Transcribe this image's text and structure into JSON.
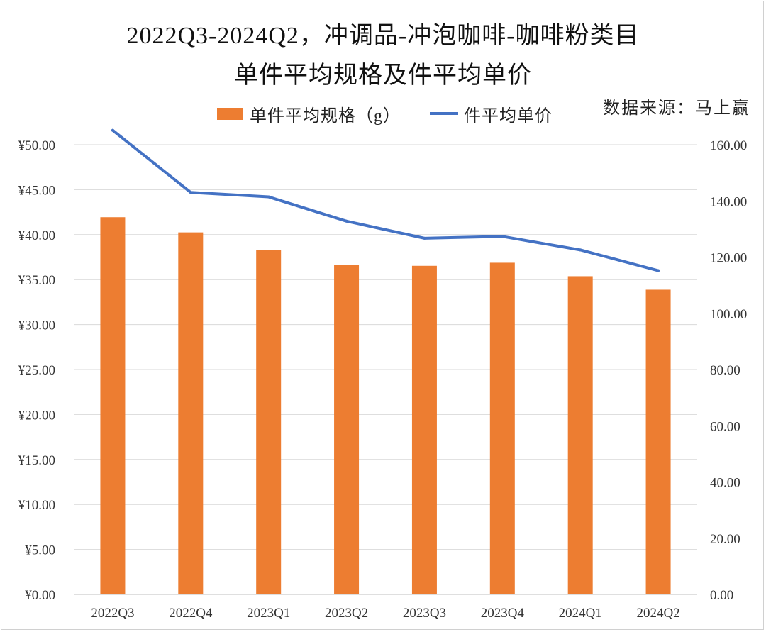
{
  "title_line1": "2022Q3-2024Q2，冲调品-冲泡咖啡-咖啡粉类目",
  "title_line2": "单件平均规格及件平均单价",
  "source": "数据来源：马上赢",
  "colors": {
    "bar": "#ED7D31",
    "line": "#4472C4",
    "grid": "#d9d9d9"
  },
  "chart_data": {
    "type": "bar",
    "title": "2022Q3-2024Q2，冲调品-冲泡咖啡-咖啡粉类目 单件平均规格及件平均单价",
    "categories": [
      "2022Q3",
      "2022Q4",
      "2023Q1",
      "2023Q2",
      "2023Q3",
      "2023Q4",
      "2024Q1",
      "2024Q2"
    ],
    "series": [
      {
        "name": "单件平均规格（g）",
        "type": "bar",
        "axis": "right",
        "values": [
          134.2,
          128.8,
          122.6,
          117.1,
          116.9,
          118.0,
          113.2,
          108.4
        ]
      },
      {
        "name": "件平均单价",
        "type": "line",
        "axis": "left",
        "values": [
          51.6,
          44.7,
          44.2,
          41.5,
          39.6,
          39.8,
          38.3,
          36.0
        ]
      }
    ],
    "y_left": {
      "min": 0,
      "max": 50,
      "step": 5,
      "ticks": [
        "¥0.00",
        "¥5.00",
        "¥10.00",
        "¥15.00",
        "¥20.00",
        "¥25.00",
        "¥30.00",
        "¥35.00",
        "¥40.00",
        "¥45.00",
        "¥50.00"
      ]
    },
    "y_right": {
      "min": 0,
      "max": 160,
      "step": 20,
      "ticks": [
        "0.00",
        "20.00",
        "40.00",
        "60.00",
        "80.00",
        "100.00",
        "120.00",
        "140.00",
        "160.00"
      ]
    },
    "legend_position": "top",
    "grid": true
  }
}
